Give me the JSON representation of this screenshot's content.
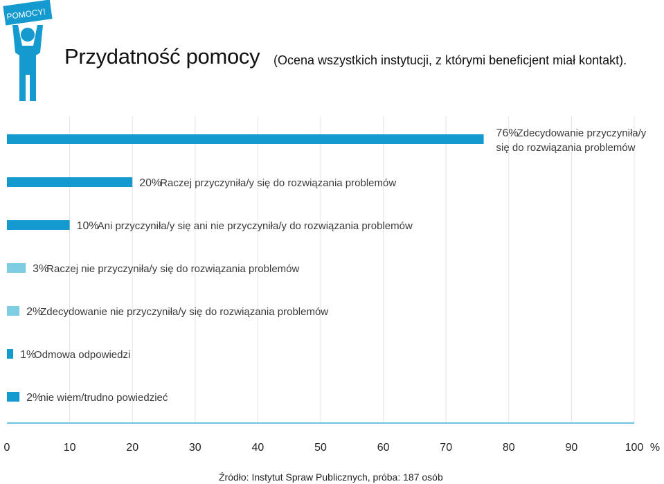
{
  "logo": {
    "badge_text": "POMOCY!"
  },
  "header": {
    "title": "Przydatność pomocy",
    "subtitle": "(Ocena wszystkich instytucji, z którymi beneficjent miał kontakt)."
  },
  "chart_data": {
    "type": "bar",
    "orientation": "horizontal",
    "categories": [
      [
        "Zdecydowanie przyczyniła/y",
        "się do rozwiązania problemów"
      ],
      [
        "Raczej przyczyniła/y się do rozwiązania problemów"
      ],
      [
        "Ani przyczyniła/y się ani nie przyczyniła/y do rozwiązania problemów"
      ],
      [
        "Raczej nie przyczyniła/y się do rozwiązania problemów"
      ],
      [
        "Zdecydowanie nie przyczyniła/y się do rozwiązania problemów"
      ],
      [
        "Odmowa odpowiedzi"
      ],
      [
        "nie wiem/trudno powiedzieć"
      ]
    ],
    "values": [
      76,
      20,
      10,
      3,
      2,
      1,
      2
    ],
    "value_labels": [
      "76%",
      "20%",
      "10%",
      "3%",
      "2%",
      "1%",
      "2%"
    ],
    "bar_colors": [
      "#159ad0",
      "#159ad0",
      "#159ad0",
      "#7fcde3",
      "#7fcde3",
      "#159ad0",
      "#159ad0"
    ],
    "xlim": [
      0,
      100
    ],
    "x_ticks": [
      "0",
      "10",
      "20",
      "30",
      "40",
      "50",
      "60",
      "70",
      "80",
      "90",
      "100"
    ],
    "x_unit": "%",
    "grid": true
  },
  "colors": {
    "accent": "#159ad0",
    "light": "#7fcde3",
    "axis": "#6fc2df",
    "grid": "#e4e4e4"
  },
  "source": "Źródło: Instytut Spraw Publicznych, próba: 187 osób"
}
